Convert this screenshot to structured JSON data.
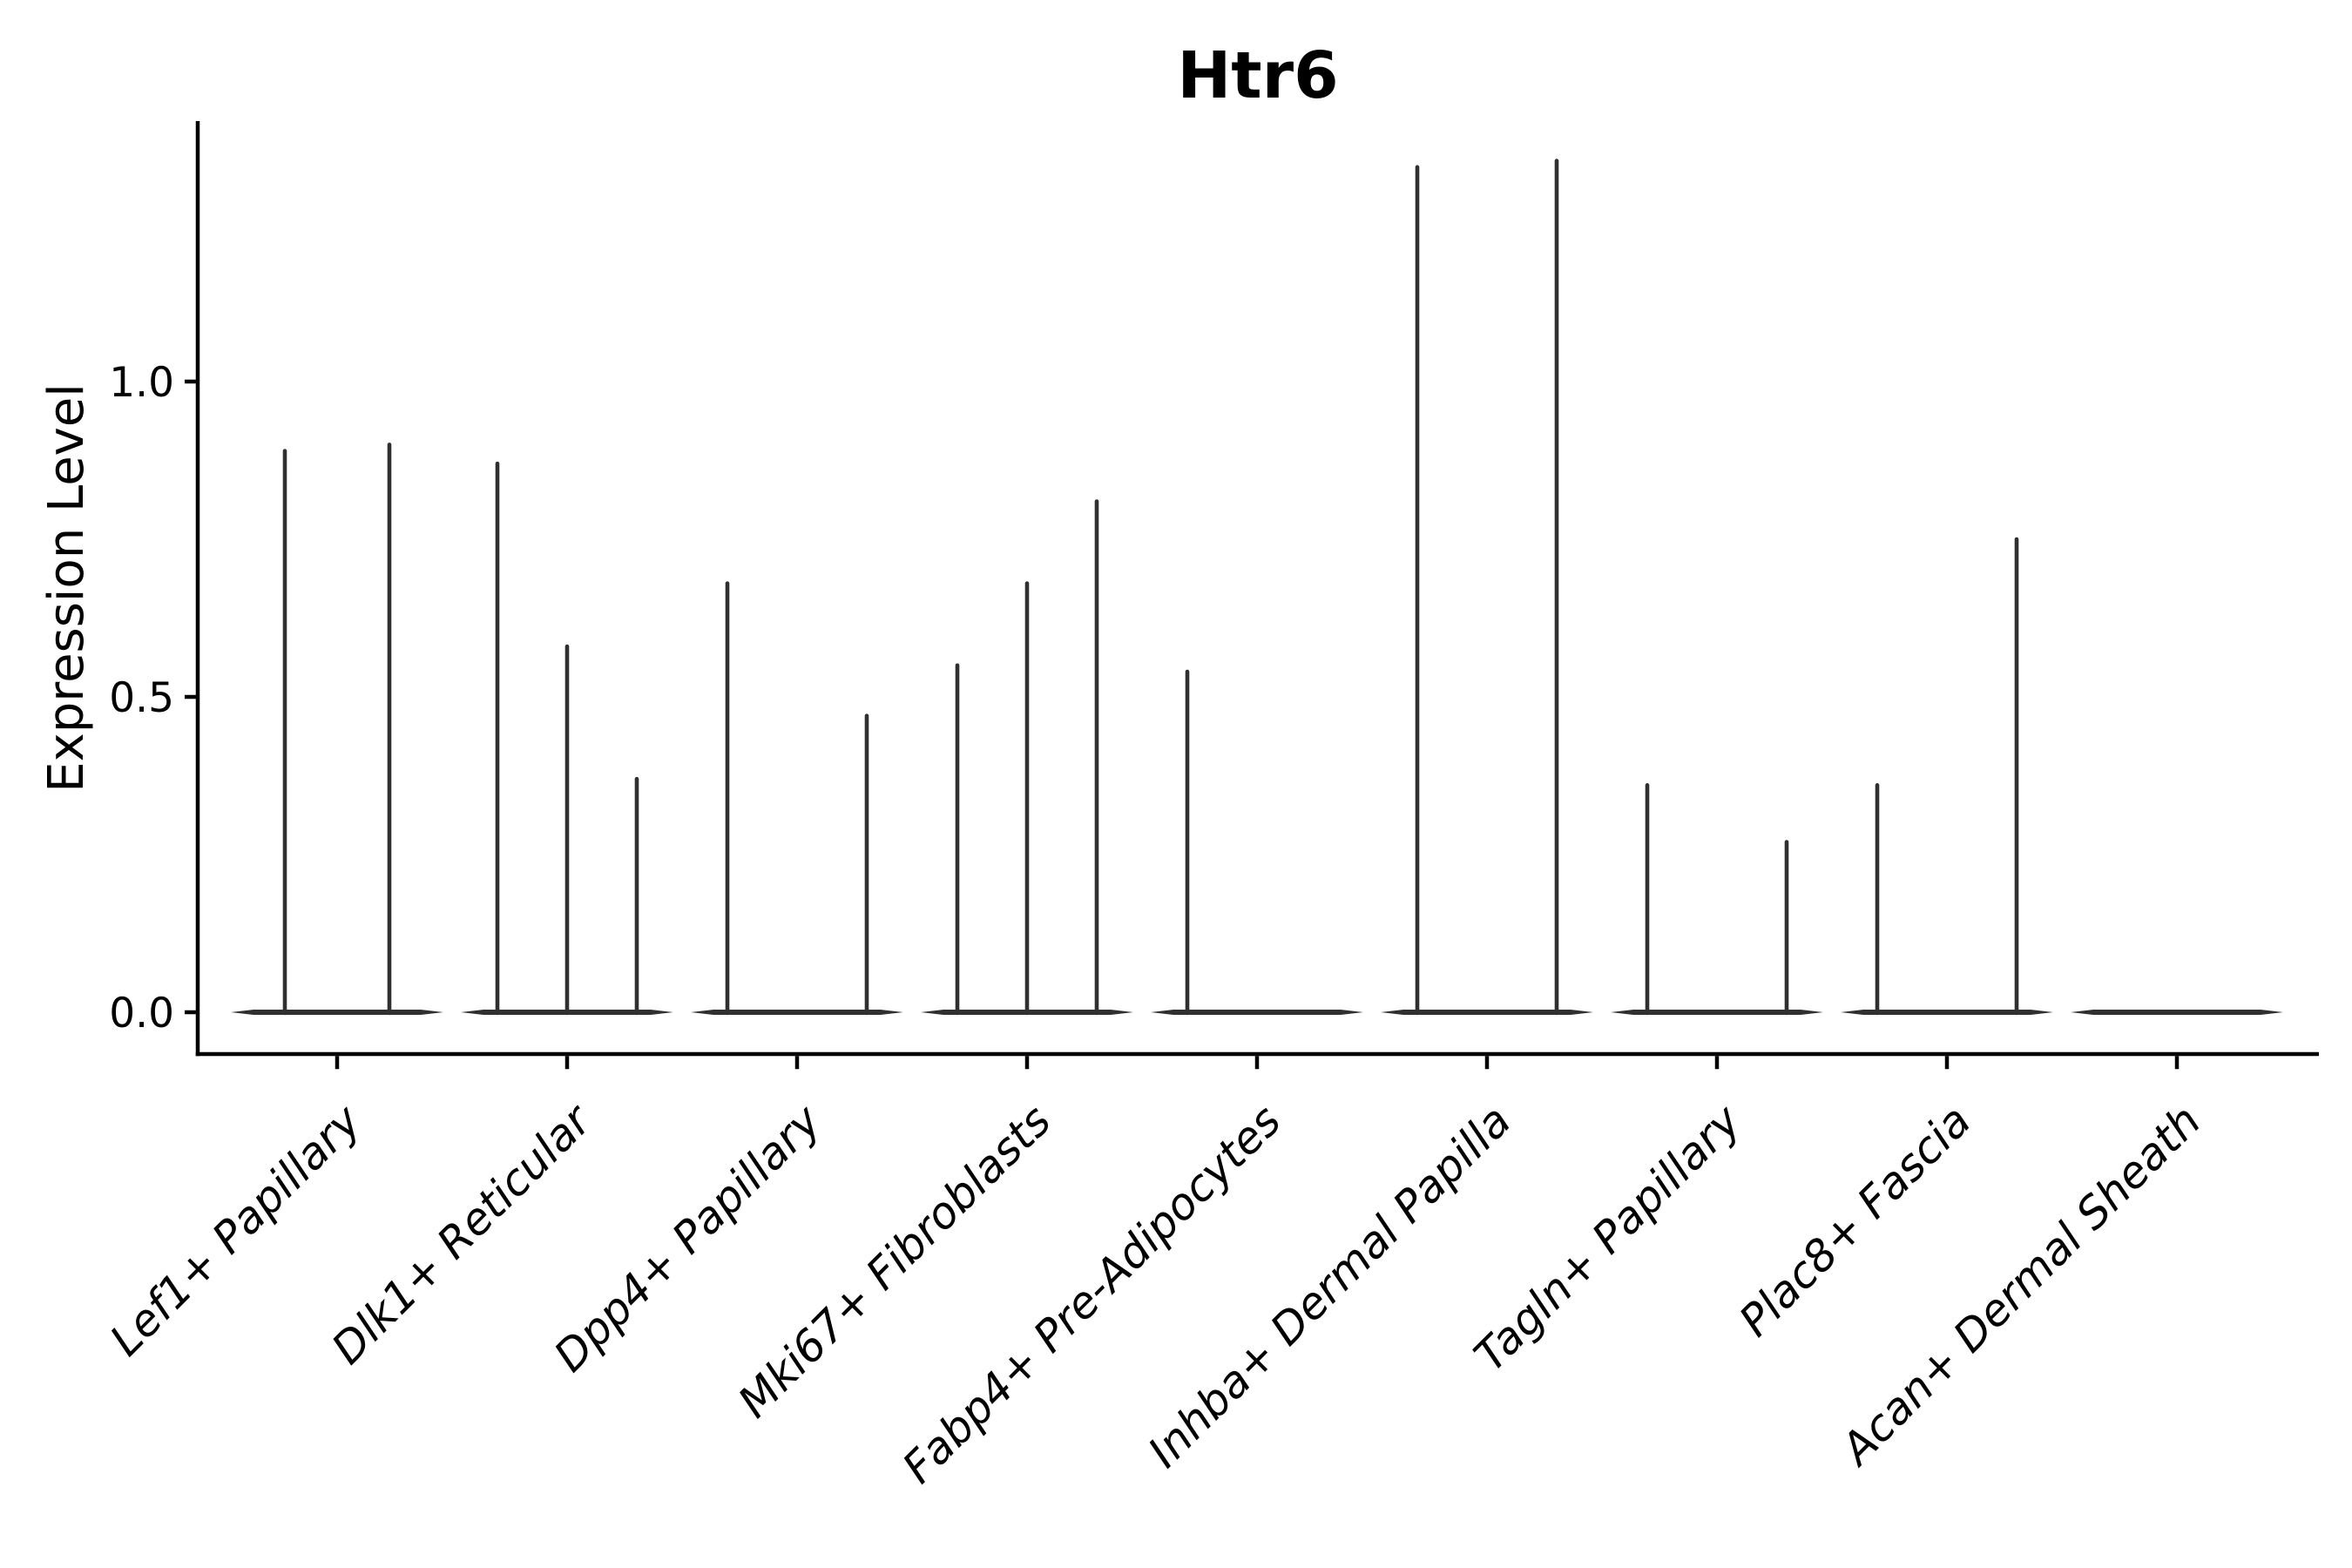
{
  "chart_data": {
    "type": "violin",
    "title": "Htr6",
    "ylabel": "Expression Level",
    "xlabel": "",
    "ytick_labels": [
      "0.0",
      "0.5",
      "1.0"
    ],
    "ytick_values": [
      0.0,
      0.5,
      1.0
    ],
    "ylim": [
      -0.07,
      1.41
    ],
    "grid": false,
    "legend": "none",
    "x_label_rotation_deg": 45,
    "x_labels_italic": true,
    "colors": {
      "violin": "#303030",
      "axis": "#000000",
      "text": "#000000",
      "background": "#ffffff"
    },
    "categories": [
      {
        "label": "Lef1+ Papillary",
        "violins": [
          {
            "offset": -60,
            "max_expression": 0.89
          },
          {
            "offset": 60,
            "max_expression": 0.9
          }
        ]
      },
      {
        "label": "Dlk1+ Reticular",
        "violins": [
          {
            "offset": -80,
            "max_expression": 0.87
          },
          {
            "offset": 0,
            "max_expression": 0.58
          },
          {
            "offset": 80,
            "max_expression": 0.37
          }
        ]
      },
      {
        "label": "Dpp4+ Papillary",
        "violins": [
          {
            "offset": -80,
            "max_expression": 0.68
          },
          {
            "offset": 0,
            "max_expression": 0
          },
          {
            "offset": 80,
            "max_expression": 0.47
          }
        ]
      },
      {
        "label": "Mki67+ Fibroblasts",
        "violins": [
          {
            "offset": -80,
            "max_expression": 0.55
          },
          {
            "offset": 0,
            "max_expression": 0.68
          },
          {
            "offset": 80,
            "max_expression": 0.81
          }
        ]
      },
      {
        "label": "Fabp4+ Pre-Adipocytes",
        "violins": [
          {
            "offset": -80,
            "max_expression": 0.54
          },
          {
            "offset": 0,
            "max_expression": 0
          },
          {
            "offset": 80,
            "max_expression": 0
          }
        ]
      },
      {
        "label": "Inhba+ Dermal Papilla",
        "violins": [
          {
            "offset": -80,
            "max_expression": 1.34
          },
          {
            "offset": 0,
            "max_expression": 0
          },
          {
            "offset": 80,
            "max_expression": 1.35
          }
        ]
      },
      {
        "label": "Tagln+ Papillary",
        "violins": [
          {
            "offset": -80,
            "max_expression": 0.36
          },
          {
            "offset": 0,
            "max_expression": 0
          },
          {
            "offset": 80,
            "max_expression": 0.27
          }
        ]
      },
      {
        "label": "Plac8+ Fascia",
        "violins": [
          {
            "offset": -80,
            "max_expression": 0.36
          },
          {
            "offset": 0,
            "max_expression": 0
          },
          {
            "offset": 80,
            "max_expression": 0.75
          }
        ]
      },
      {
        "label": "Acan+ Dermal Sheath",
        "violins": [
          {
            "offset": -80,
            "max_expression": 0
          },
          {
            "offset": 0,
            "max_expression": 0
          },
          {
            "offset": 80,
            "max_expression": 0
          }
        ]
      }
    ]
  }
}
